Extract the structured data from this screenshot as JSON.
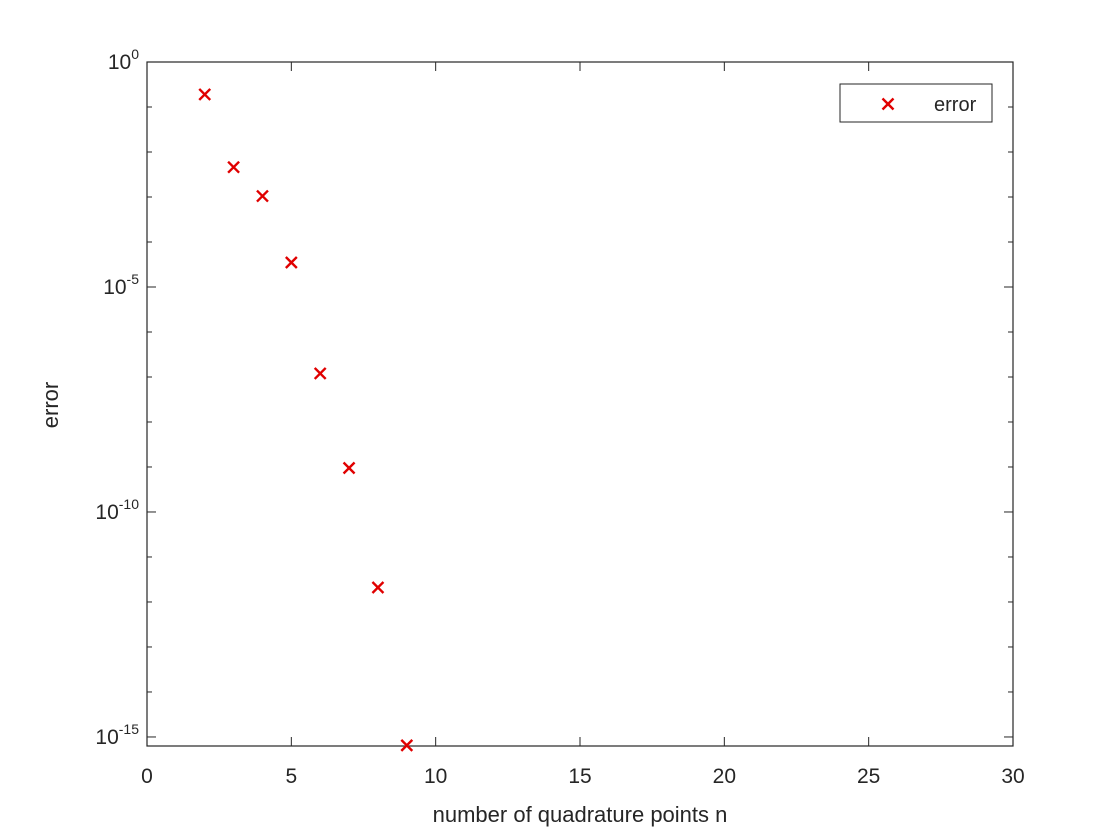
{
  "chart_data": {
    "type": "scatter",
    "xlabel": "number of quadrature points n",
    "ylabel": "error",
    "x_axis": {
      "scale": "linear",
      "range": [
        0,
        30
      ],
      "ticks": [
        0,
        5,
        10,
        15,
        20,
        25,
        30
      ],
      "tick_labels": [
        "0",
        "5",
        "10",
        "15",
        "20",
        "25",
        "30"
      ]
    },
    "y_axis": {
      "scale": "log",
      "range": [
        6.3e-16,
        1
      ],
      "major_tick_exponents": [
        0,
        -5,
        -10,
        -15
      ],
      "tick_labels": [
        {
          "base": "10",
          "exponent": "0"
        },
        {
          "base": "10",
          "exponent": "-5"
        },
        {
          "base": "10",
          "exponent": "-10"
        },
        {
          "base": "10",
          "exponent": "-15"
        }
      ]
    },
    "series": [
      {
        "name": "error",
        "marker": "x",
        "color": "#e00000",
        "points": [
          {
            "x": 2,
            "y": 0.19
          },
          {
            "x": 3,
            "y": 0.0046
          },
          {
            "x": 4,
            "y": 0.00105
          },
          {
            "x": 5,
            "y": 3.5e-05
          },
          {
            "x": 6,
            "y": 1.2e-07
          },
          {
            "x": 7,
            "y": 9.5e-10
          },
          {
            "x": 8,
            "y": 2.1e-12
          },
          {
            "x": 9,
            "y": 6.5e-16
          }
        ]
      }
    ],
    "legend": {
      "position": "top-right",
      "entries": [
        "error"
      ]
    },
    "grid": false,
    "box": true
  }
}
